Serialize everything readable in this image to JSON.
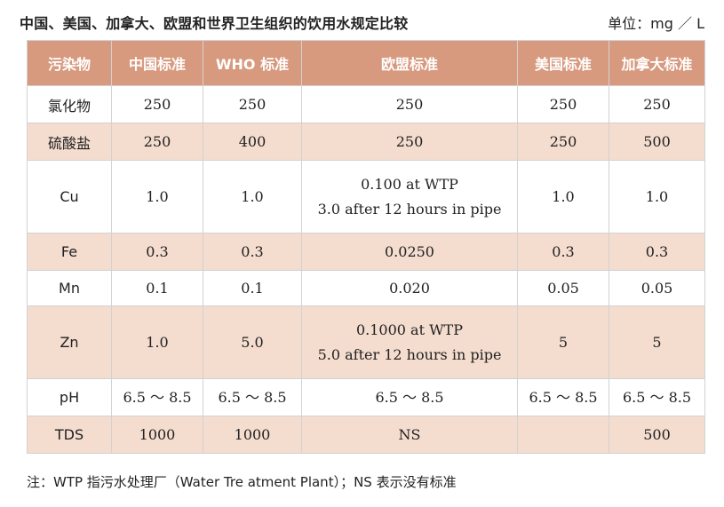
{
  "title": "中国、美国、加拿大、欧盟和世界卫生组织的饮用水规定比较",
  "unit": "单位：mg ／ L",
  "table": {
    "headers": [
      "污染物",
      "中国标准",
      "WHO 标准",
      "欧盟标准",
      "美国标准",
      "加拿大标准"
    ],
    "rows": [
      [
        "氯化物",
        "250",
        "250",
        "250",
        "250",
        "250"
      ],
      [
        "硫酸盐",
        "250",
        "400",
        "250",
        "250",
        "500"
      ],
      [
        "Cu",
        "1.0",
        "1.0",
        "0.100 at WTP\n3.0 after 12 hours in pipe",
        "1.0",
        "1.0"
      ],
      [
        "Fe",
        "0.3",
        "0.3",
        "0.0250",
        "0.3",
        "0.3"
      ],
      [
        "Mn",
        "0.1",
        "0.1",
        "0.020",
        "0.05",
        "0.05"
      ],
      [
        "Zn",
        "1.0",
        "5.0",
        "0.1000 at WTP\n5.0 after 12 hours in pipe",
        "5",
        "5"
      ],
      [
        "pH",
        "6.5 ～ 8.5",
        "6.5 ～ 8.5",
        "6.5 ～ 8.5",
        "6.5 ～ 8.5",
        "6.5 ～ 8.5"
      ],
      [
        "TDS",
        "1000",
        "1000",
        "NS",
        "",
        "500"
      ]
    ]
  },
  "note": "注：WTP 指污水处理厂（Water Tre atment Plant）；NS 表示没有标准",
  "colors": {
    "header_bg": "#d89a7f",
    "shaded_row_bg": "#f4dccf",
    "header_text": "#ffffff"
  }
}
